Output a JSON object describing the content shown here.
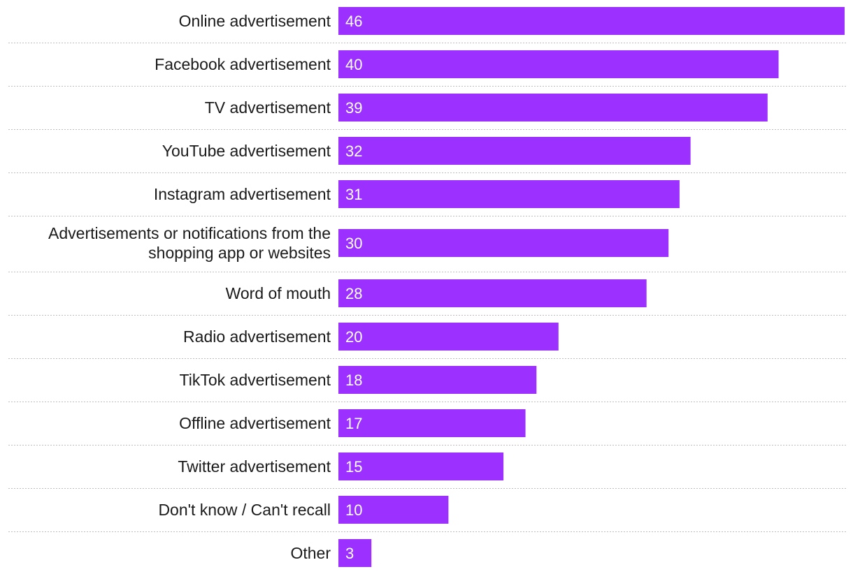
{
  "chart_data": {
    "type": "bar",
    "orientation": "horizontal",
    "title": "",
    "xlabel": "",
    "ylabel": "",
    "xlim": [
      0,
      46
    ],
    "grid": false,
    "legend": "none",
    "bar_color": "#9b30ff",
    "categories": [
      "Online advertisement",
      "Facebook advertisement",
      "TV advertisement",
      "YouTube advertisement",
      "Instagram advertisement",
      [
        "Advertisements or notifications from the",
        "shopping app or websites"
      ],
      "Word of mouth",
      "Radio advertisement",
      "TikTok advertisement",
      "Offline advertisement",
      "Twitter advertisement",
      "Don't know / Can't recall",
      "Other"
    ],
    "values": [
      46,
      40,
      39,
      32,
      31,
      30,
      28,
      20,
      18,
      17,
      15,
      10,
      3
    ]
  }
}
